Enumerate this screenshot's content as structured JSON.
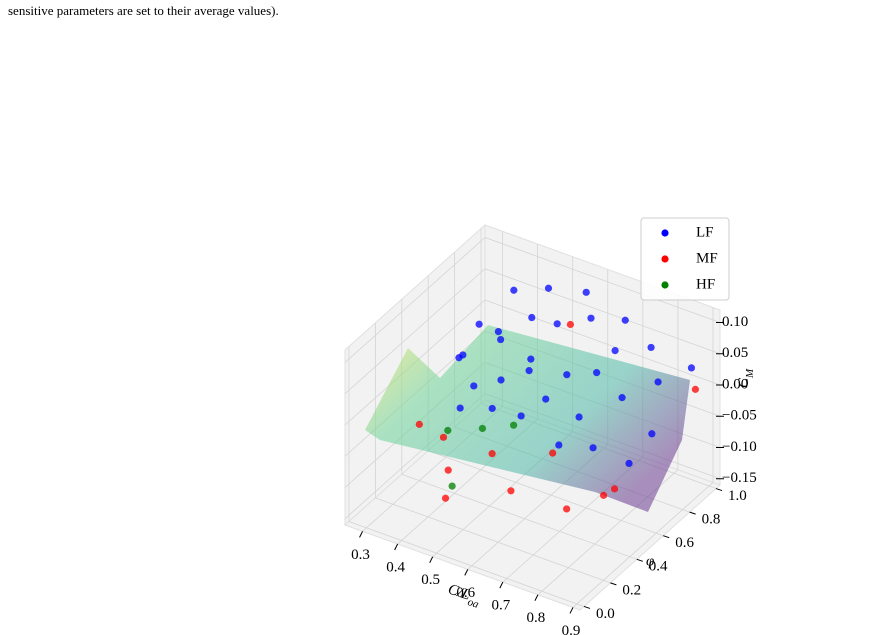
{
  "caption": "sensitive parameters are set to their average values).",
  "chart_data": {
    "type": "scatter3d",
    "xlabel": "C/L",
    "xlabel_sub": "oa",
    "ylabel": "φ",
    "zlabel": "C",
    "zlabel_sub": "M",
    "xlim": [
      0.25,
      0.92
    ],
    "ylim": [
      -0.03,
      1.03
    ],
    "zlim": [
      -0.16,
      0.12
    ],
    "xticks": [
      0.3,
      0.4,
      0.5,
      0.6,
      0.7,
      0.8,
      0.9
    ],
    "yticks": [
      {
        "value": 0,
        "label": "0.0"
      },
      0.2,
      0.4,
      0.6,
      0.8,
      {
        "value": 1,
        "label": "1.0"
      }
    ],
    "zticks": [
      {
        "value": -0.15,
        "label": "−0.15"
      },
      {
        "value": -0.1,
        "label": "−0.10"
      },
      {
        "value": -0.05,
        "label": "−0.05"
      },
      {
        "value": 0,
        "label": "0.00"
      },
      0.05,
      {
        "value": 0.1,
        "label": "0.10"
      }
    ],
    "grid": true,
    "legend": "upper right",
    "series": [
      {
        "name": "LF",
        "color": "#0000ff",
        "x": [
          0.3,
          0.33,
          0.35,
          0.38,
          0.4,
          0.42,
          0.45,
          0.47,
          0.5,
          0.52,
          0.55,
          0.57,
          0.6,
          0.62,
          0.65,
          0.67,
          0.7,
          0.72,
          0.75,
          0.78,
          0.8,
          0.83,
          0.85,
          0.88,
          0.36,
          0.44,
          0.53,
          0.63,
          0.48,
          0.58,
          0.68,
          0.4
        ],
        "y": [
          0.7,
          0.65,
          0.72,
          0.6,
          0.75,
          0.68,
          0.62,
          0.8,
          0.7,
          0.66,
          0.78,
          0.64,
          0.72,
          0.85,
          0.68,
          0.76,
          0.82,
          0.6,
          0.74,
          0.88,
          0.66,
          0.8,
          0.7,
          0.92,
          0.55,
          0.58,
          0.56,
          0.58,
          0.9,
          0.92,
          0.95,
          0.85
        ],
        "z": [
          -0.02,
          0.0,
          0.04,
          -0.03,
          0.02,
          0.05,
          -0.01,
          0.06,
          0.0,
          0.03,
          0.07,
          -0.02,
          0.01,
          0.08,
          -0.04,
          0.02,
          0.05,
          -0.06,
          0.0,
          0.06,
          -0.08,
          0.03,
          -0.03,
          0.04,
          -0.06,
          -0.05,
          -0.04,
          -0.07,
          0.09,
          0.1,
          0.07,
          0.08
        ]
      },
      {
        "name": "MF",
        "color": "#ff0000",
        "x": [
          0.3,
          0.35,
          0.42,
          0.5,
          0.58,
          0.65,
          0.72,
          0.8,
          0.88,
          0.55,
          0.45,
          0.75
        ],
        "y": [
          0.4,
          0.45,
          0.3,
          0.42,
          0.35,
          0.48,
          0.4,
          0.55,
          0.95,
          0.88,
          0.2,
          0.6
        ],
        "z": [
          -0.07,
          -0.09,
          -0.1,
          -0.08,
          -0.11,
          -0.06,
          -0.12,
          -0.1,
          0.0,
          0.05,
          -0.12,
          -0.13
        ]
      },
      {
        "name": "HF",
        "color": "#008000",
        "x": [
          0.4,
          0.48,
          0.45,
          0.55
        ],
        "y": [
          0.35,
          0.4,
          0.25,
          0.45
        ],
        "z": [
          -0.05,
          -0.04,
          -0.11,
          -0.03
        ]
      }
    ]
  }
}
